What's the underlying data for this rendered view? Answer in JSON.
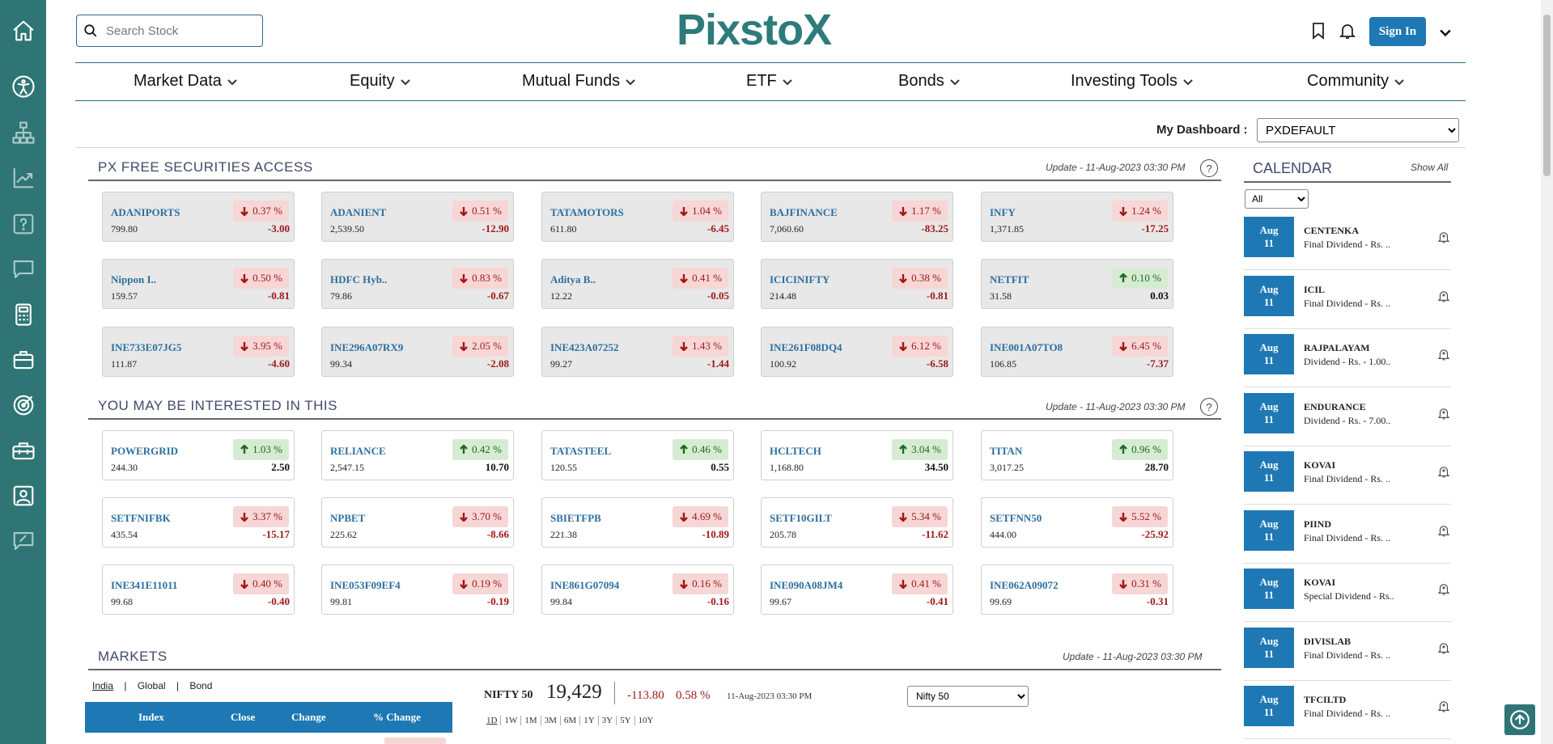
{
  "header": {
    "logo": "PixstoX",
    "search_placeholder": "Search Stock",
    "signin_label": "Sign In"
  },
  "nav": [
    {
      "label": "Market Data"
    },
    {
      "label": "Equity"
    },
    {
      "label": "Mutual Funds"
    },
    {
      "label": "ETF"
    },
    {
      "label": "Bonds"
    },
    {
      "label": "Investing Tools"
    },
    {
      "label": "Community"
    }
  ],
  "sidebar_icons": [
    "home-icon",
    "accessibility-icon",
    "sitemap-icon",
    "chart-line-icon",
    "question-icon",
    "chat-icon",
    "calculator-icon",
    "briefcase-icon",
    "target-icon",
    "toolbox-icon",
    "portfolio-icon",
    "feedback-icon"
  ],
  "dashboard": {
    "label": "My Dashboard :",
    "selected": "PXDEFAULT"
  },
  "free_securities": {
    "title": "PX FREE SECURITIES ACCESS",
    "update": "Update - 11-Aug-2023 03:30 PM",
    "help": "?",
    "cards": [
      {
        "symbol": "ADANIPORTS",
        "change_pct": "0.37 %",
        "price": "799.80",
        "change": "-3.00",
        "dir": "down"
      },
      {
        "symbol": "ADANIENT",
        "change_pct": "0.51 %",
        "price": "2,539.50",
        "change": "-12.90",
        "dir": "down"
      },
      {
        "symbol": "TATAMOTORS",
        "change_pct": "1.04 %",
        "price": "611.80",
        "change": "-6.45",
        "dir": "down"
      },
      {
        "symbol": "BAJFINANCE",
        "change_pct": "1.17 %",
        "price": "7,060.60",
        "change": "-83.25",
        "dir": "down"
      },
      {
        "symbol": "INFY",
        "change_pct": "1.24 %",
        "price": "1,371.85",
        "change": "-17.25",
        "dir": "down"
      },
      {
        "symbol": "Nippon I..",
        "change_pct": "0.50 %",
        "price": "159.57",
        "change": "-0.81",
        "dir": "down"
      },
      {
        "symbol": "HDFC Hyb..",
        "change_pct": "0.83 %",
        "price": "79.86",
        "change": "-0.67",
        "dir": "down"
      },
      {
        "symbol": "Aditya B..",
        "change_pct": "0.41 %",
        "price": "12.22",
        "change": "-0.05",
        "dir": "down"
      },
      {
        "symbol": "ICICINIFTY",
        "change_pct": "0.38 %",
        "price": "214.48",
        "change": "-0.81",
        "dir": "down"
      },
      {
        "symbol": "NETFIT",
        "change_pct": "0.10 %",
        "price": "31.58",
        "change": "0.03",
        "dir": "up"
      },
      {
        "symbol": "INE733E07JG5",
        "change_pct": "3.95 %",
        "price": "111.87",
        "change": "-4.60",
        "dir": "down"
      },
      {
        "symbol": "INE296A07RX9",
        "change_pct": "2.05 %",
        "price": "99.34",
        "change": "-2.08",
        "dir": "down"
      },
      {
        "symbol": "INE423A07252",
        "change_pct": "1.43 %",
        "price": "99.27",
        "change": "-1.44",
        "dir": "down"
      },
      {
        "symbol": "INE261F08DQ4",
        "change_pct": "6.12 %",
        "price": "100.92",
        "change": "-6.58",
        "dir": "down"
      },
      {
        "symbol": "INE001A07TO8",
        "change_pct": "6.45 %",
        "price": "106.85",
        "change": "-7.37",
        "dir": "down"
      }
    ]
  },
  "interested": {
    "title": "YOU MAY BE INTERESTED IN THIS",
    "update": "Update - 11-Aug-2023 03:30 PM",
    "help": "?",
    "cards": [
      {
        "symbol": "POWERGRID",
        "change_pct": "1.03 %",
        "price": "244.30",
        "change": "2.50",
        "dir": "up"
      },
      {
        "symbol": "RELIANCE",
        "change_pct": "0.42 %",
        "price": "2,547.15",
        "change": "10.70",
        "dir": "up"
      },
      {
        "symbol": "TATASTEEL",
        "change_pct": "0.46 %",
        "price": "120.55",
        "change": "0.55",
        "dir": "up"
      },
      {
        "symbol": "HCLTECH",
        "change_pct": "3.04 %",
        "price": "1,168.80",
        "change": "34.50",
        "dir": "up"
      },
      {
        "symbol": "TITAN",
        "change_pct": "0.96 %",
        "price": "3,017.25",
        "change": "28.70",
        "dir": "up"
      },
      {
        "symbol": "SETFNIFBK",
        "change_pct": "3.37 %",
        "price": "435.54",
        "change": "-15.17",
        "dir": "down"
      },
      {
        "symbol": "NPBET",
        "change_pct": "3.70 %",
        "price": "225.62",
        "change": "-8.66",
        "dir": "down"
      },
      {
        "symbol": "SBIETFPB",
        "change_pct": "4.69 %",
        "price": "221.38",
        "change": "-10.89",
        "dir": "down"
      },
      {
        "symbol": "SETF10GILT",
        "change_pct": "5.34 %",
        "price": "205.78",
        "change": "-11.62",
        "dir": "down"
      },
      {
        "symbol": "SETFNN50",
        "change_pct": "5.52 %",
        "price": "444.00",
        "change": "-25.92",
        "dir": "down"
      },
      {
        "symbol": "INE341E11011",
        "change_pct": "0.40 %",
        "price": "99.68",
        "change": "-0.40",
        "dir": "down"
      },
      {
        "symbol": "INE053F09EF4",
        "change_pct": "0.19 %",
        "price": "99.81",
        "change": "-0.19",
        "dir": "down"
      },
      {
        "symbol": "INE861G07094",
        "change_pct": "0.16 %",
        "price": "99.84",
        "change": "-0.16",
        "dir": "down"
      },
      {
        "symbol": "INE090A08JM4",
        "change_pct": "0.41 %",
        "price": "99.67",
        "change": "-0.41",
        "dir": "down"
      },
      {
        "symbol": "INE062A09072",
        "change_pct": "0.31 %",
        "price": "99.69",
        "change": "-0.31",
        "dir": "down"
      }
    ]
  },
  "markets": {
    "title": "MARKETS",
    "update": "Update - 11-Aug-2023 03:30 PM",
    "tabs": [
      "India",
      "|",
      "Global",
      "|",
      "Bond"
    ],
    "table_headers": [
      "Index",
      "Close",
      "Change",
      "% Change"
    ],
    "index_name": "NIFTY 50",
    "index_value": "19,429",
    "index_change": "-113.80",
    "index_pct": "0.58 %",
    "index_time": "11-Aug-2023 03:30 PM",
    "index_select": "Nifty 50",
    "ranges": [
      "1D",
      "1W",
      "1M",
      "3M",
      "6M",
      "1Y",
      "3Y",
      "5Y",
      "10Y"
    ]
  },
  "calendar": {
    "title": "CALENDAR",
    "show_all": "Show All",
    "filter": "All",
    "events": [
      {
        "month": "Aug",
        "day": "11",
        "name": "CENTENKA",
        "desc": "Final Dividend - Rs. .."
      },
      {
        "month": "Aug",
        "day": "11",
        "name": "ICIL",
        "desc": "Final Dividend - Rs. .."
      },
      {
        "month": "Aug",
        "day": "11",
        "name": "RAJPALAYAM",
        "desc": "Dividend - Rs. - 1.00.."
      },
      {
        "month": "Aug",
        "day": "11",
        "name": "ENDURANCE",
        "desc": "Dividend - Rs. - 7.00.."
      },
      {
        "month": "Aug",
        "day": "11",
        "name": "KOVAI",
        "desc": "Final Dividend - Rs. .."
      },
      {
        "month": "Aug",
        "day": "11",
        "name": "PIIND",
        "desc": "Final Dividend - Rs. .."
      },
      {
        "month": "Aug",
        "day": "11",
        "name": "KOVAI",
        "desc": "Special Dividend - Rs.."
      },
      {
        "month": "Aug",
        "day": "11",
        "name": "DIVISLAB",
        "desc": "Final Dividend - Rs. .."
      },
      {
        "month": "Aug",
        "day": "11",
        "name": "TFCILTD",
        "desc": "Final Dividend - Rs. .."
      }
    ]
  },
  "colors": {
    "sidebar": "#2f7575",
    "accent": "#1e78b4",
    "down": "#a01818",
    "up": "#1e6a1e"
  }
}
